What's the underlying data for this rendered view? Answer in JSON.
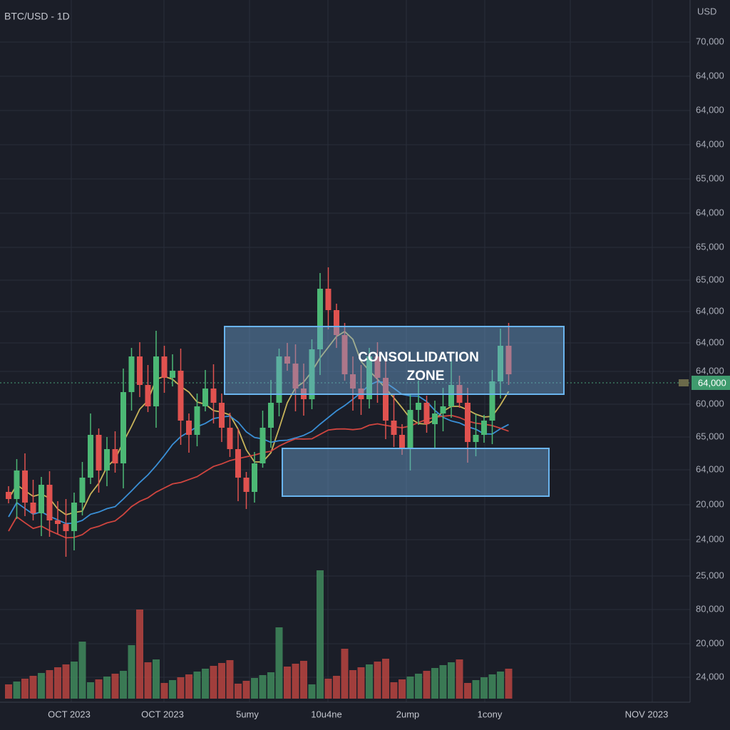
{
  "screen": {
    "title": "BTC/USD - 1D",
    "axis_unit": "USD",
    "price_labels": [
      "70,000",
      "64,000",
      "64,000",
      "64,000",
      "65,000",
      "64,000",
      "65,000",
      "65,000",
      "64,000",
      "64,000",
      "64,000",
      "60,000",
      "65,000",
      "64,000",
      "20,000",
      "24,000",
      "25,000",
      "80,000",
      "20,000",
      "24,000"
    ],
    "current_price": "64,000",
    "date_labels": [
      "OCT 2023",
      "OCT 2023",
      "5umy",
      "10u4ne",
      "2ump",
      "1cony",
      "NOV 2023"
    ],
    "annotation": [
      "CONSOLLIDATION",
      "ZONE"
    ]
  }
}
